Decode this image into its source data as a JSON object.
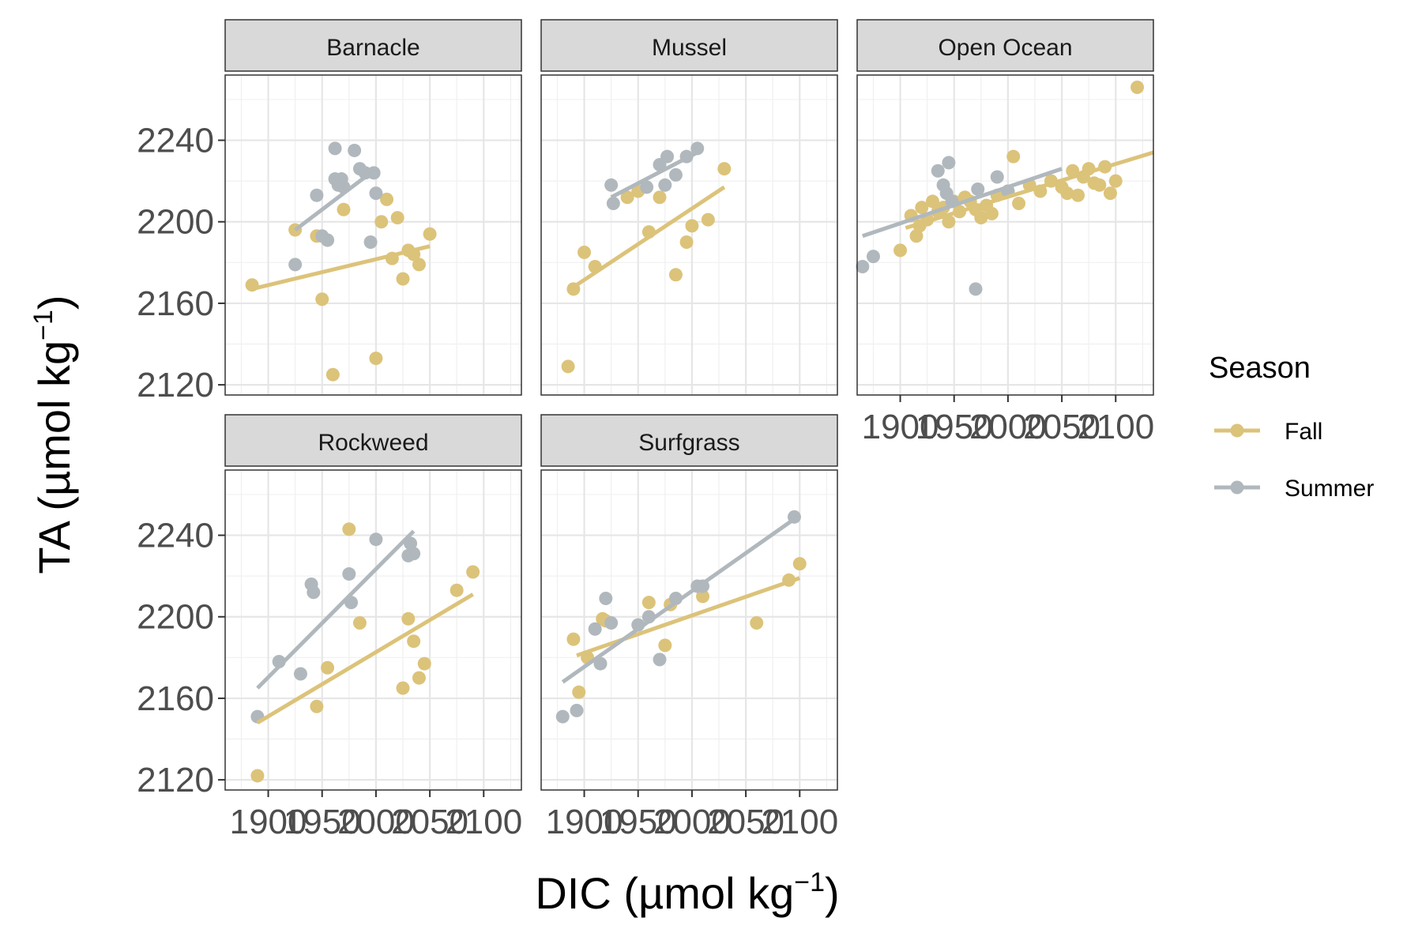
{
  "chart_data": {
    "type": "scatter",
    "facet_by": "site",
    "xlabel": "DIC (µmol kg",
    "xlabel_exp": "−1",
    "xlabel_close": ")",
    "ylabel": "TA (µmol kg",
    "ylabel_exp": "−1",
    "ylabel_close": ")",
    "xlim": [
      1860,
      2135
    ],
    "ylim": [
      2115,
      2272
    ],
    "x_ticks": [
      1900,
      1950,
      2000,
      2050,
      2100
    ],
    "x_tick_labels": [
      "1900",
      "1950",
      "2000",
      "2050",
      "2100"
    ],
    "y_ticks": [
      2120,
      2160,
      2200,
      2240
    ],
    "y_tick_labels": [
      "2120",
      "2160",
      "2200",
      "2240"
    ],
    "grid": true,
    "legend": {
      "title": "Season",
      "placement": "right",
      "entries": [
        {
          "name": "Fall",
          "color": "#dcc37a"
        },
        {
          "name": "Summer",
          "color": "#b0b8bd"
        }
      ]
    },
    "panels": [
      {
        "name": "Barnacle",
        "series": [
          {
            "name": "Fall",
            "color": "#dcc37a",
            "x": [
              1885,
              1925,
              1945,
              1950,
              1960,
              1970,
              2000,
              2005,
              2015,
              2020,
              2025,
              2030,
              2035,
              2040,
              2050,
              2010,
              1955
            ],
            "y": [
              2169,
              2196,
              2193,
              2162,
              2125,
              2206,
              2133,
              2200,
              2182,
              2202,
              2172,
              2186,
              2184,
              2179,
              2194,
              2211,
              2191
            ],
            "fit": {
              "x": [
                1885,
                2050
              ],
              "y": [
                2167,
                2188
              ]
            }
          },
          {
            "name": "Summer",
            "color": "#b0b8bd",
            "x": [
              1925,
              1945,
              1950,
              1955,
              1962,
              1965,
              1968,
              1970,
              1980,
              1985,
              1990,
              1995,
              2000,
              1998,
              1962
            ],
            "y": [
              2179,
              2213,
              2193,
              2191,
              2236,
              2218,
              2221,
              2217,
              2235,
              2226,
              2224,
              2190,
              2214,
              2224,
              2221
            ],
            "fit": {
              "x": [
                1925,
                1995
              ],
              "y": [
                2196,
                2224
              ]
            }
          }
        ]
      },
      {
        "name": "Mussel",
        "series": [
          {
            "name": "Fall",
            "color": "#dcc37a",
            "x": [
              1885,
              1890,
              1900,
              1910,
              1940,
              1950,
              1960,
              1970,
              1985,
              1995,
              2000,
              2015,
              2030
            ],
            "y": [
              2129,
              2167,
              2185,
              2178,
              2212,
              2215,
              2195,
              2212,
              2174,
              2190,
              2198,
              2201,
              2226
            ],
            "fit": {
              "x": [
                1890,
                2030
              ],
              "y": [
                2168,
                2217
              ]
            }
          },
          {
            "name": "Summer",
            "color": "#b0b8bd",
            "x": [
              1925,
              1927,
              1958,
              1970,
              1975,
              1977,
              1985,
              1995,
              2005
            ],
            "y": [
              2218,
              2209,
              2217,
              2228,
              2218,
              2232,
              2223,
              2232,
              2236
            ],
            "fit": {
              "x": [
                1925,
                2005
              ],
              "y": [
                2212,
                2234
              ]
            }
          }
        ]
      },
      {
        "name": "Open Ocean",
        "series": [
          {
            "name": "Fall",
            "color": "#dcc37a",
            "x": [
              1900,
              1910,
              1915,
              1918,
              1920,
              1925,
              1930,
              1935,
              1940,
              1945,
              1950,
              1955,
              1960,
              1965,
              1970,
              1975,
              1980,
              1985,
              1990,
              2000,
              2005,
              2010,
              2020,
              2030,
              2040,
              2050,
              2055,
              2060,
              2065,
              2070,
              2075,
              2080,
              2085,
              2090,
              2095,
              2100,
              2120
            ],
            "y": [
              2186,
              2203,
              2193,
              2198,
              2207,
              2201,
              2210,
              2205,
              2207,
              2200,
              2210,
              2205,
              2212,
              2210,
              2206,
              2202,
              2208,
              2204,
              2213,
              2215,
              2232,
              2209,
              2218,
              2215,
              2220,
              2217,
              2214,
              2225,
              2213,
              2222,
              2226,
              2219,
              2218,
              2227,
              2214,
              2220,
              2266
            ],
            "fit": {
              "x": [
                1905,
                2135
              ],
              "y": [
                2197,
                2234
              ]
            }
          },
          {
            "name": "Summer",
            "color": "#b0b8bd",
            "x": [
              1865,
              1875,
              1935,
              1940,
              1943,
              1945,
              1948,
              1970,
              1972,
              1990,
              2000
            ],
            "y": [
              2178,
              2183,
              2225,
              2218,
              2214,
              2229,
              2210,
              2167,
              2216,
              2222,
              2215
            ],
            "fit": {
              "x": [
                1865,
                2050
              ],
              "y": [
                2193,
                2226
              ]
            }
          }
        ]
      },
      {
        "name": "Rockweed",
        "series": [
          {
            "name": "Fall",
            "color": "#dcc37a",
            "x": [
              1890,
              1945,
              1955,
              1975,
              1985,
              2025,
              2030,
              2035,
              2040,
              2045,
              2075,
              2090
            ],
            "y": [
              2122,
              2156,
              2175,
              2243,
              2197,
              2165,
              2199,
              2188,
              2170,
              2177,
              2213,
              2222
            ],
            "fit": {
              "x": [
                1890,
                2090
              ],
              "y": [
                2148,
                2211
              ]
            }
          },
          {
            "name": "Summer",
            "color": "#b0b8bd",
            "x": [
              1890,
              1910,
              1930,
              1940,
              1942,
              1975,
              1977,
              2000,
              2030,
              2032,
              2035
            ],
            "y": [
              2151,
              2178,
              2172,
              2216,
              2212,
              2221,
              2207,
              2238,
              2230,
              2236,
              2231
            ],
            "fit": {
              "x": [
                1890,
                2035
              ],
              "y": [
                2165,
                2242
              ]
            }
          }
        ]
      },
      {
        "name": "Surfgrass",
        "series": [
          {
            "name": "Fall",
            "color": "#dcc37a",
            "x": [
              1890,
              1895,
              1903,
              1917,
              1920,
              1960,
              1975,
              1980,
              2010,
              2060,
              2090,
              2100
            ],
            "y": [
              2189,
              2163,
              2180,
              2199,
              2198,
              2207,
              2186,
              2206,
              2210,
              2197,
              2218,
              2226
            ],
            "fit": {
              "x": [
                1893,
                2100
              ],
              "y": [
                2181,
                2219
              ]
            }
          },
          {
            "name": "Summer",
            "color": "#b0b8bd",
            "x": [
              1880,
              1893,
              1910,
              1915,
              1920,
              1925,
              1950,
              1960,
              1970,
              1985,
              2005,
              2010,
              2095
            ],
            "y": [
              2151,
              2154,
              2194,
              2177,
              2209,
              2197,
              2196,
              2200,
              2179,
              2209,
              2215,
              2215,
              2249
            ],
            "fit": {
              "x": [
                1880,
                2095
              ],
              "y": [
                2168,
                2248
              ]
            }
          }
        ]
      }
    ]
  }
}
